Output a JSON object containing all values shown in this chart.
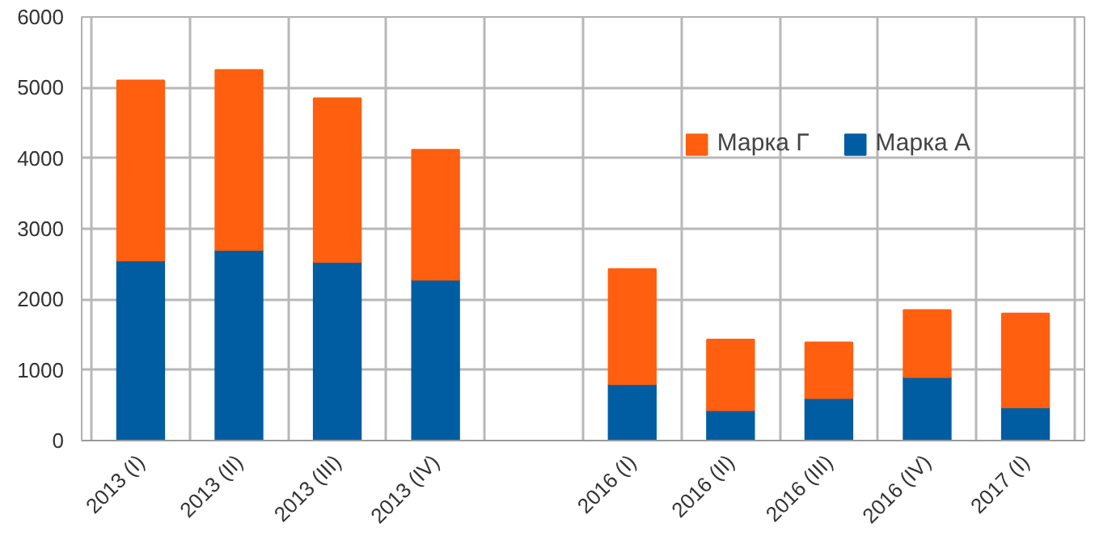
{
  "chart_data": {
    "type": "bar",
    "stacked": true,
    "categories": [
      "2013 (I)",
      "2013 (II)",
      "2013 (III)",
      "2013 (IV)",
      null,
      "2016 (I)",
      "2016 (II)",
      "2016 (III)",
      "2016 (IV)",
      "2017 (I)"
    ],
    "series": [
      {
        "name": "Марка А",
        "color": "#005da2",
        "values": [
          2550,
          2700,
          2530,
          2280,
          null,
          800,
          430,
          600,
          900,
          470
        ]
      },
      {
        "name": "Марка Г",
        "color": "#ff5f0f",
        "values": [
          2550,
          2550,
          2320,
          1840,
          null,
          1630,
          1000,
          790,
          950,
          1330
        ]
      }
    ],
    "ylim": [
      0,
      6000
    ],
    "yticks": [
      0,
      1000,
      2000,
      3000,
      4000,
      5000,
      6000
    ],
    "grid": true,
    "legend": "top right"
  }
}
